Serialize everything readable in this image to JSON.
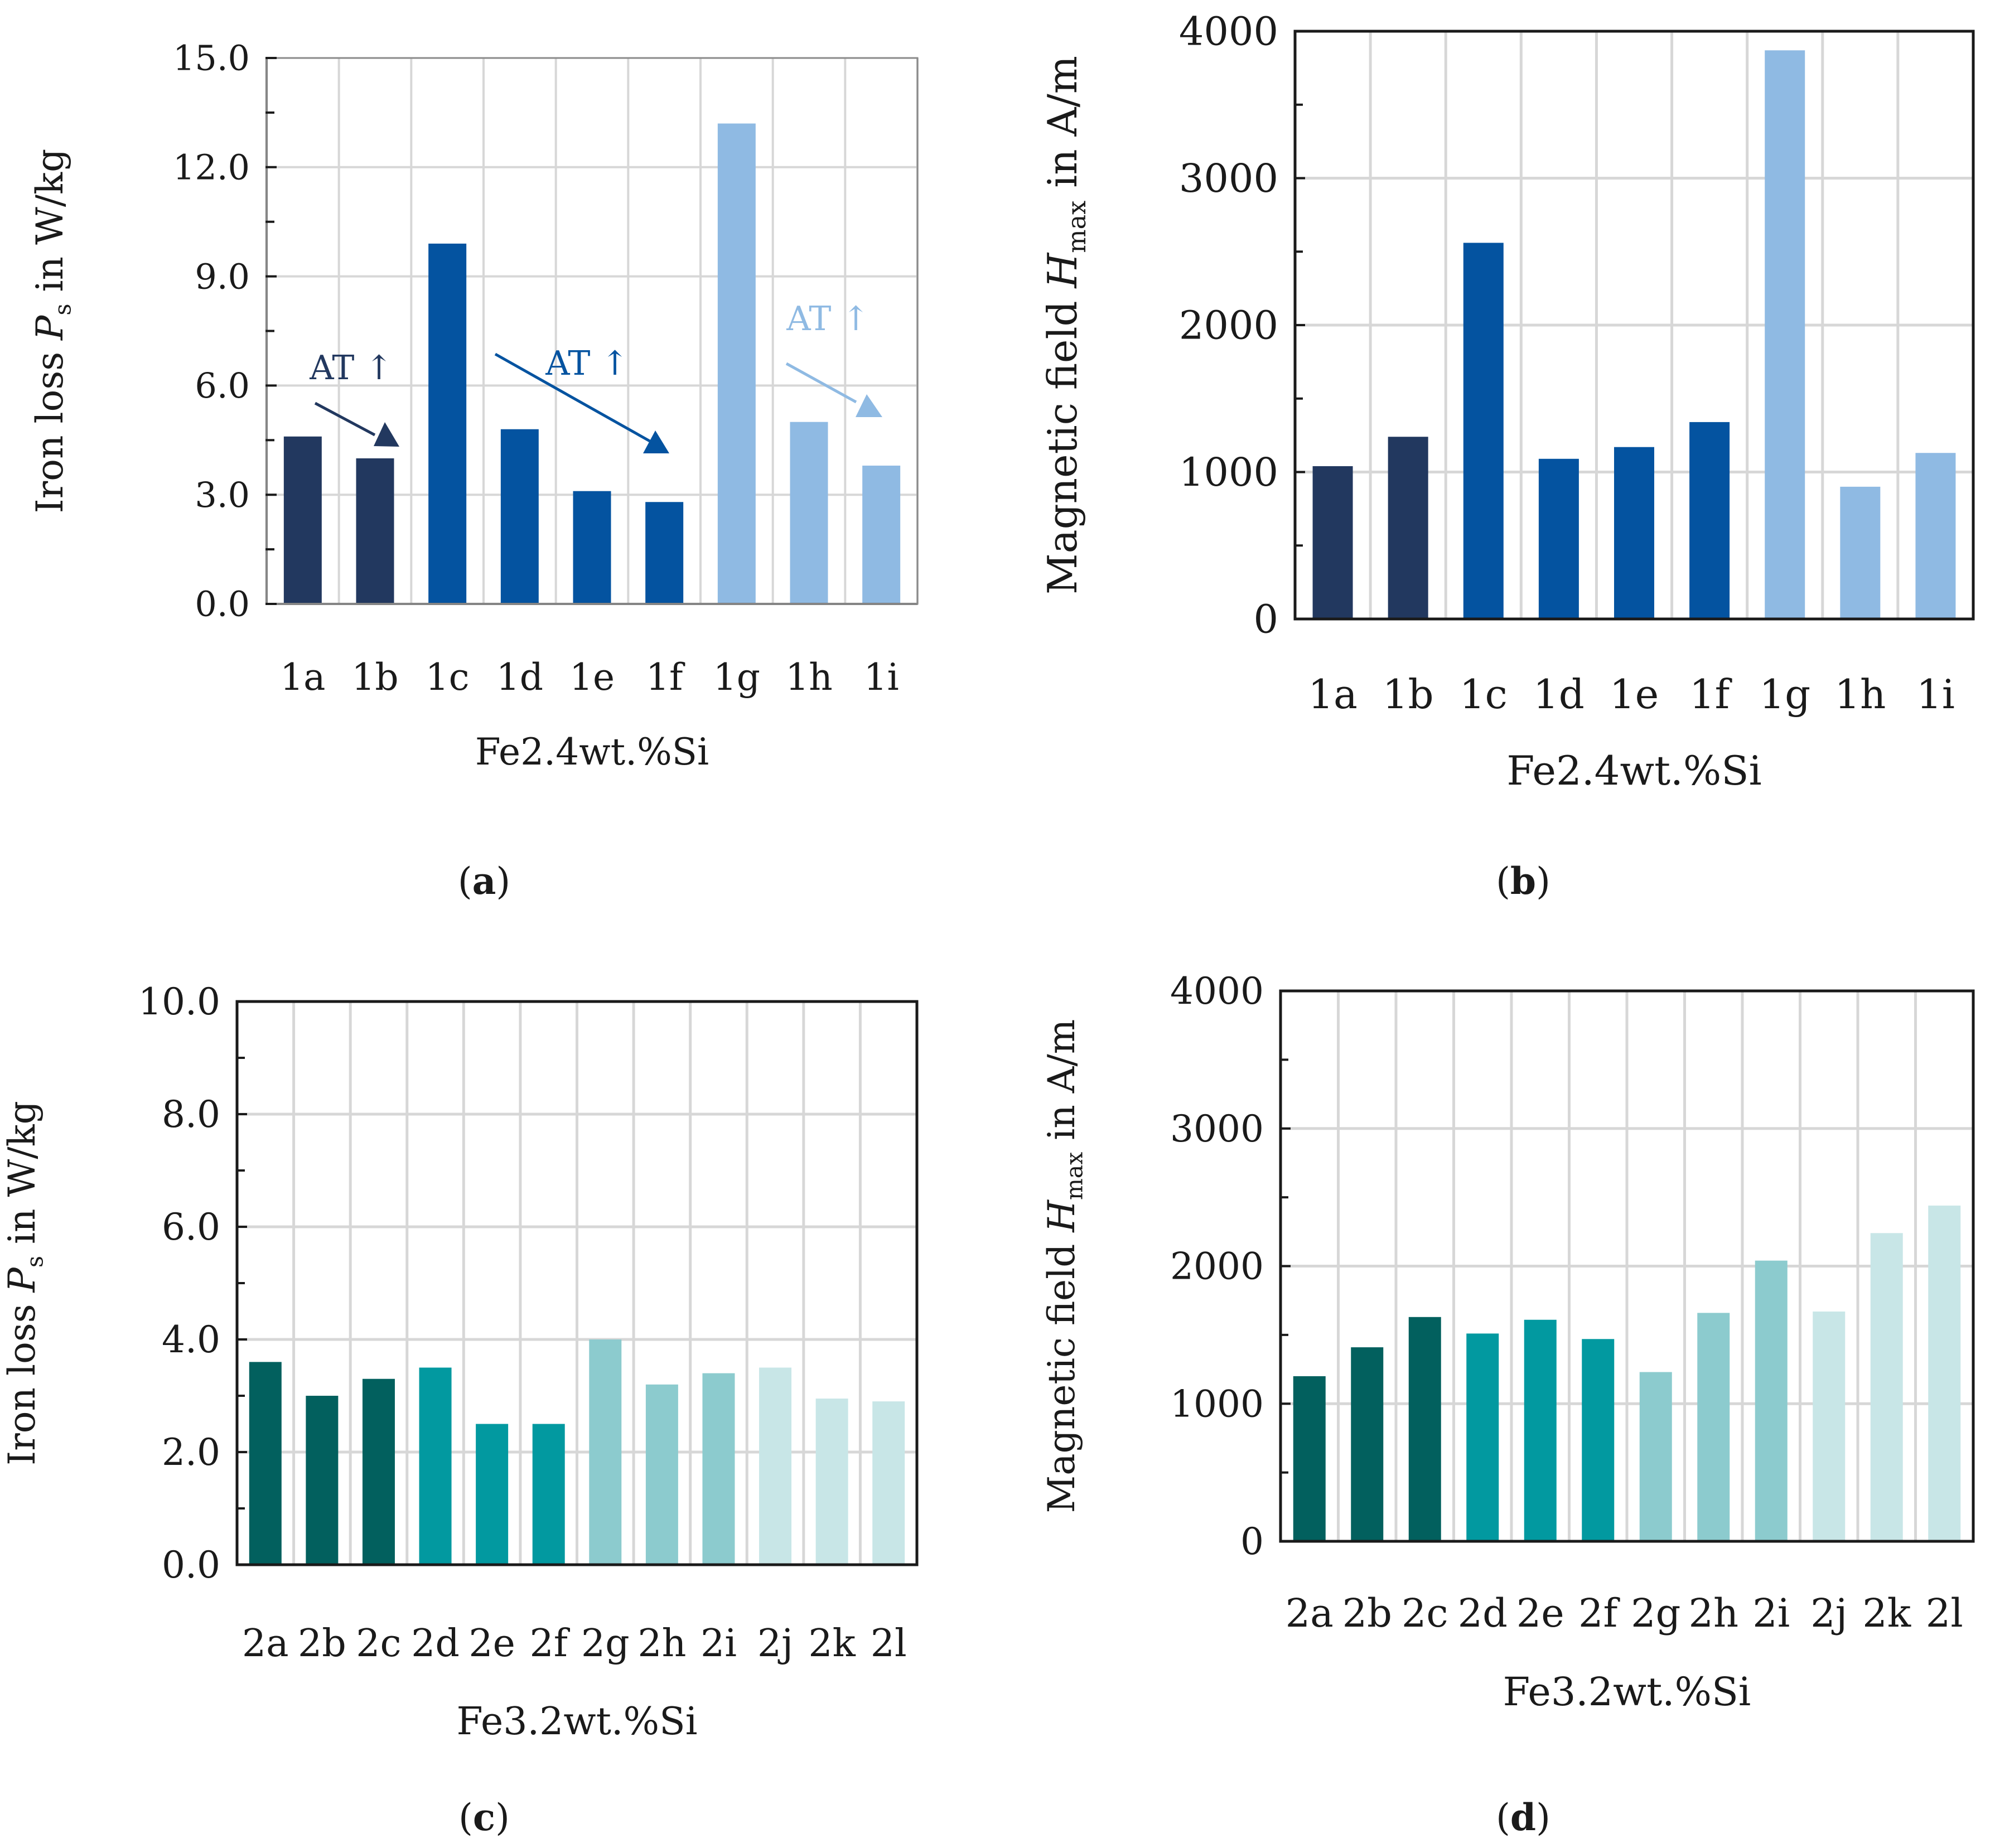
{
  "colors": {
    "navy": "#22385f",
    "blue": "#0453a0",
    "lightblue": "#8fbae3",
    "teal_dark": "#02605e",
    "teal": "#0299a0",
    "teal_light": "#8ccbce",
    "teal_pale": "#c8e6e7",
    "grid": "#d7d7d7",
    "axis": "#1a1a1a"
  },
  "chart_data": [
    {
      "type": "bar",
      "panel": "(a)",
      "panel_letter": "a",
      "xlabel": "Fe2.4wt.%Si",
      "ylabel_main": "Iron loss ",
      "ylabel_symbol": "P",
      "ylabel_sub": "s",
      "ylabel_tail": " in W/kg",
      "ylim": [
        0,
        15
      ],
      "ytick_step": 3,
      "ytick_labels": [
        "0.0",
        "3.0",
        "6.0",
        "9.0",
        "12.0",
        "15.0"
      ],
      "categories": [
        "1a",
        "1b",
        "1c",
        "1d",
        "1e",
        "1f",
        "1g",
        "1h",
        "1i"
      ],
      "values": [
        4.6,
        4.0,
        9.9,
        4.8,
        3.1,
        2.8,
        13.2,
        5.0,
        3.8
      ],
      "bar_colors": [
        "navy",
        "navy",
        "blue",
        "blue",
        "blue",
        "blue",
        "lightblue",
        "lightblue",
        "lightblue"
      ],
      "annotations": [
        {
          "text": "AT ↑",
          "color": "navy"
        },
        {
          "text": "AT ↑",
          "color": "blue"
        },
        {
          "text": "AT ↑",
          "color": "lightblue"
        }
      ]
    },
    {
      "type": "bar",
      "panel": "(b)",
      "panel_letter": "b",
      "xlabel": "Fe2.4wt.%Si",
      "ylabel_main": "Magnetic field ",
      "ylabel_symbol": "H",
      "ylabel_sub": "max",
      "ylabel_tail": " in A/m",
      "ylim": [
        0,
        4000
      ],
      "ytick_step": 1000,
      "ytick_labels": [
        "0",
        "1000",
        "2000",
        "3000",
        "4000"
      ],
      "categories": [
        "1a",
        "1b",
        "1c",
        "1d",
        "1e",
        "1f",
        "1g",
        "1h",
        "1i"
      ],
      "values": [
        1040,
        1240,
        2560,
        1090,
        1170,
        1340,
        3870,
        900,
        1130
      ],
      "bar_colors": [
        "navy",
        "navy",
        "blue",
        "blue",
        "blue",
        "blue",
        "lightblue",
        "lightblue",
        "lightblue"
      ]
    },
    {
      "type": "bar",
      "panel": "(c)",
      "panel_letter": "c",
      "xlabel": "Fe3.2wt.%Si",
      "ylabel_main": "Iron loss ",
      "ylabel_symbol": "P",
      "ylabel_sub": "s",
      "ylabel_tail": " in W/kg",
      "ylim": [
        0,
        10
      ],
      "ytick_step": 2,
      "ytick_labels": [
        "0.0",
        "2.0",
        "4.0",
        "6.0",
        "8.0",
        "10.0"
      ],
      "categories": [
        "2a",
        "2b",
        "2c",
        "2d",
        "2e",
        "2f",
        "2g",
        "2h",
        "2i",
        "2j",
        "2k",
        "2l"
      ],
      "values": [
        3.6,
        3.0,
        3.3,
        3.5,
        2.5,
        2.5,
        4.0,
        3.2,
        3.4,
        3.5,
        2.95,
        2.9
      ],
      "bar_colors": [
        "teal_dark",
        "teal_dark",
        "teal_dark",
        "teal",
        "teal",
        "teal",
        "teal_light",
        "teal_light",
        "teal_light",
        "teal_pale",
        "teal_pale",
        "teal_pale"
      ]
    },
    {
      "type": "bar",
      "panel": "(d)",
      "panel_letter": "d",
      "xlabel": "Fe3.2wt.%Si",
      "ylabel_main": "Magnetic field ",
      "ylabel_symbol": "H",
      "ylabel_sub": "max",
      "ylabel_tail": " in A/m",
      "ylim": [
        0,
        4000
      ],
      "ytick_step": 1000,
      "ytick_labels": [
        "0",
        "1000",
        "2000",
        "3000",
        "4000"
      ],
      "categories": [
        "2a",
        "2b",
        "2c",
        "2d",
        "2e",
        "2f",
        "2g",
        "2h",
        "2i",
        "2j",
        "2k",
        "2l"
      ],
      "values": [
        1200,
        1410,
        1630,
        1510,
        1610,
        1470,
        1230,
        1660,
        2040,
        1670,
        2240,
        2440
      ],
      "bar_colors": [
        "teal_dark",
        "teal_dark",
        "teal_dark",
        "teal",
        "teal",
        "teal",
        "teal_light",
        "teal_light",
        "teal_light",
        "teal_pale",
        "teal_pale",
        "teal_pale"
      ]
    }
  ]
}
